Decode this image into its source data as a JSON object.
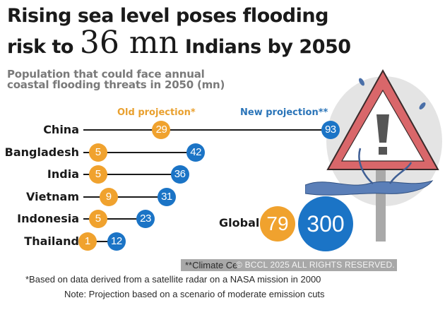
{
  "title": {
    "line1": "Rising sea level poses flooding",
    "line2_pre": "risk to",
    "line2_big": "36 mn",
    "line2_post": "Indians by 2050"
  },
  "subtitle": "Population that could face annual coastal flooding threats in 2050 (mn)",
  "colors": {
    "old": "#f0a22e",
    "new": "#1b74c6",
    "sign_red": "#d9676a"
  },
  "chart_data": {
    "type": "dumbbell",
    "title": "Population that could face annual coastal flooding threats in 2050 (mn)",
    "categories": [
      "China",
      "Bangladesh",
      "India",
      "Vietnam",
      "Indonesia",
      "Thailand"
    ],
    "series": [
      {
        "name": "Old projection*",
        "values": [
          29,
          5,
          5,
          9,
          5,
          1
        ]
      },
      {
        "name": "New projection**",
        "values": [
          93,
          42,
          36,
          31,
          23,
          12
        ]
      }
    ],
    "global": {
      "label": "Global",
      "old": 79,
      "new": 300
    }
  },
  "legend": {
    "old": "Old projection*",
    "new": "New projection**"
  },
  "footnotes": {
    "climate": "**Climate Ce",
    "based": "*Based on data derived from a satellite radar on a NASA mission in 2000",
    "note": "Note: Projection based on a scenario of moderate emission cuts"
  },
  "watermark": "© BCCL 2025 ALL RIGHTS RESERVED.",
  "illustration": {
    "icon": "flood-warning-sign-icon"
  }
}
